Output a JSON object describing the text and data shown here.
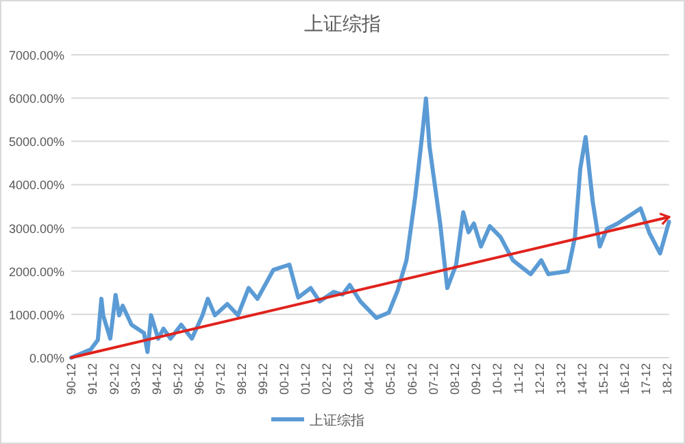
{
  "chart_data": {
    "type": "line",
    "title": "上证综指",
    "ylim": [
      0,
      7000
    ],
    "yticks": [
      {
        "value": 0,
        "label": "0.00%"
      },
      {
        "value": 1000,
        "label": "1000.00%"
      },
      {
        "value": 2000,
        "label": "2000.00%"
      },
      {
        "value": 3000,
        "label": "3000.00%"
      },
      {
        "value": 4000,
        "label": "4000.00%"
      },
      {
        "value": 5000,
        "label": "5000.00%"
      },
      {
        "value": 6000,
        "label": "6000.00%"
      },
      {
        "value": 7000,
        "label": "7000.00%"
      }
    ],
    "xlim": [
      "1990-12",
      "2019-01"
    ],
    "xticks": [
      {
        "value": "1990-12",
        "label": "90-12"
      },
      {
        "value": "1991-12",
        "label": "91-12"
      },
      {
        "value": "1992-12",
        "label": "92-12"
      },
      {
        "value": "1993-12",
        "label": "93-12"
      },
      {
        "value": "1994-12",
        "label": "94-12"
      },
      {
        "value": "1995-12",
        "label": "95-12"
      },
      {
        "value": "1996-12",
        "label": "96-12"
      },
      {
        "value": "1997-12",
        "label": "97-12"
      },
      {
        "value": "1998-12",
        "label": "98-12"
      },
      {
        "value": "1999-12",
        "label": "99-12"
      },
      {
        "value": "2000-12",
        "label": "00-12"
      },
      {
        "value": "2001-12",
        "label": "01-12"
      },
      {
        "value": "2002-12",
        "label": "02-12"
      },
      {
        "value": "2003-12",
        "label": "03-12"
      },
      {
        "value": "2004-12",
        "label": "04-12"
      },
      {
        "value": "2005-12",
        "label": "05-12"
      },
      {
        "value": "2006-12",
        "label": "06-12"
      },
      {
        "value": "2007-12",
        "label": "07-12"
      },
      {
        "value": "2008-12",
        "label": "08-12"
      },
      {
        "value": "2009-12",
        "label": "09-12"
      },
      {
        "value": "2010-12",
        "label": "10-12"
      },
      {
        "value": "2011-12",
        "label": "11-12"
      },
      {
        "value": "2012-12",
        "label": "12-12"
      },
      {
        "value": "2013-12",
        "label": "13-12"
      },
      {
        "value": "2014-12",
        "label": "14-12"
      },
      {
        "value": "2015-12",
        "label": "15-12"
      },
      {
        "value": "2016-12",
        "label": "16-12"
      },
      {
        "value": "2017-12",
        "label": "17-12"
      },
      {
        "value": "2018-12",
        "label": "18-12"
      }
    ],
    "grid": "y",
    "legend": "bottom",
    "series": [
      {
        "name": "上证综指",
        "color": "#5b9bd5",
        "x": [
          "1990-12",
          "1991-11",
          "1992-03",
          "1992-05",
          "1992-06",
          "1992-10",
          "1993-01",
          "1993-03",
          "1993-05",
          "1993-10",
          "1994-05",
          "1994-07",
          "1994-09",
          "1995-01",
          "1995-04",
          "1995-08",
          "1996-02",
          "1996-08",
          "1997-02",
          "1997-05",
          "1997-09",
          "1998-04",
          "1998-10",
          "1999-04",
          "1999-09",
          "2000-06",
          "2001-03",
          "2001-08",
          "2002-03",
          "2002-08",
          "2003-04",
          "2003-09",
          "2004-01",
          "2004-07",
          "2005-04",
          "2005-11",
          "2006-04",
          "2006-09",
          "2007-02",
          "2007-06",
          "2007-08",
          "2007-10",
          "2008-04",
          "2008-08",
          "2009-01",
          "2009-05",
          "2009-08",
          "2009-11",
          "2010-03",
          "2010-08",
          "2011-02",
          "2011-09",
          "2012-07",
          "2013-01",
          "2013-05",
          "2014-04",
          "2014-08",
          "2014-11",
          "2015-02",
          "2015-06",
          "2015-10",
          "2016-02",
          "2016-08",
          "2017-09",
          "2018-02",
          "2018-08",
          "2019-01"
        ],
        "values": [
          0,
          190,
          410,
          1360,
          980,
          440,
          1450,
          980,
          1200,
          760,
          570,
          130,
          980,
          440,
          670,
          440,
          760,
          440,
          980,
          1360,
          980,
          1240,
          980,
          1610,
          1360,
          2030,
          2150,
          1390,
          1610,
          1300,
          1520,
          1460,
          1680,
          1300,
          920,
          1040,
          1550,
          2250,
          3740,
          5200,
          5990,
          4880,
          3100,
          1610,
          2150,
          3360,
          2900,
          3100,
          2570,
          3040,
          2790,
          2250,
          1930,
          2250,
          1930,
          2000,
          2790,
          4370,
          5100,
          3610,
          2570,
          2980,
          3100,
          3450,
          2880,
          2410,
          3140
        ]
      },
      {
        "color": "#e0221c",
        "x": [
          "1990-12",
          "2019-01"
        ],
        "values": [
          0,
          3250
        ]
      }
    ]
  }
}
